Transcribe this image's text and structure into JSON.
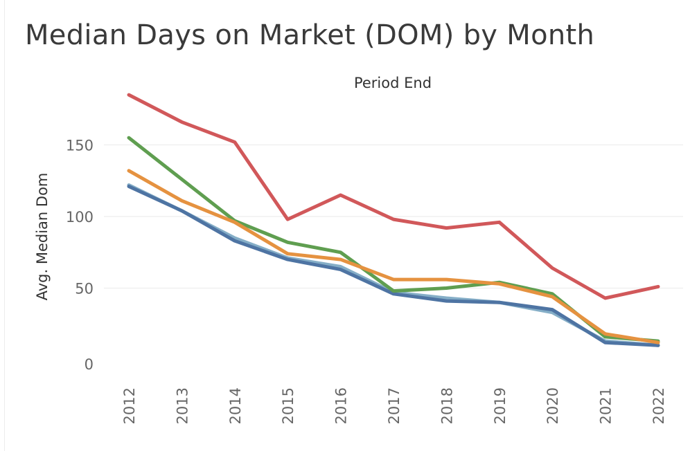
{
  "title": "Median Days on Market (DOM) by Month",
  "chart_data": {
    "type": "line",
    "title": "Median Days on Market (DOM) by Month",
    "xlabel": "Period End",
    "ylabel": "Avg. Median Dom",
    "categories": [
      "2012",
      "2013",
      "2014",
      "2015",
      "2016",
      "2017",
      "2018",
      "2019",
      "2020",
      "2021",
      "2022"
    ],
    "y_ticks": [
      "0",
      "50",
      "100",
      "150"
    ],
    "ylim": [
      0,
      190
    ],
    "grid": true,
    "legend": "none",
    "series": [
      {
        "color": "#d1585a",
        "values": [
          185,
          166,
          152,
          98,
          115,
          98,
          92,
          96,
          64,
          43,
          51
        ]
      },
      {
        "color": "#5f9e50",
        "values": [
          155,
          126,
          97,
          82,
          75,
          48,
          50,
          54,
          46,
          16,
          13
        ]
      },
      {
        "color": "#e59240",
        "values": [
          132,
          111,
          96,
          74,
          70,
          56,
          56,
          53,
          44,
          18,
          12
        ]
      },
      {
        "color": "#85aec7",
        "values": [
          122,
          104,
          85,
          71,
          65,
          47,
          43,
          40,
          33,
          13,
          10
        ]
      },
      {
        "color": "#4e74a3",
        "values": [
          121,
          104,
          83,
          70,
          63,
          46,
          41,
          40,
          35,
          12,
          10
        ]
      }
    ]
  }
}
